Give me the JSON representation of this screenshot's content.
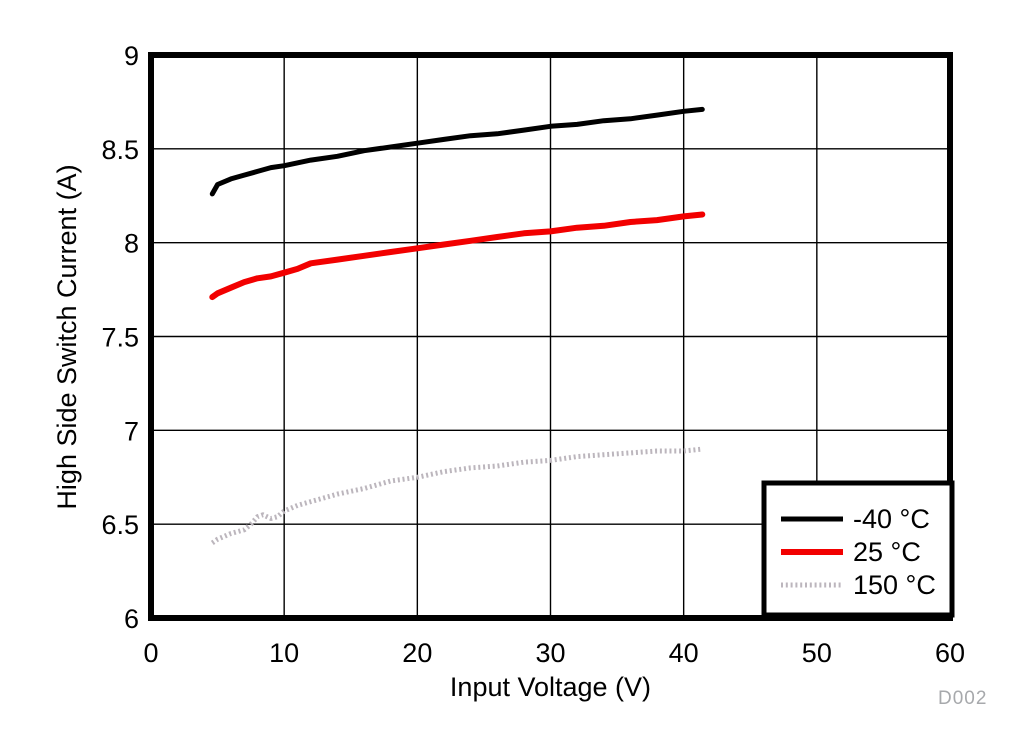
{
  "page": {
    "background": "#ffffff"
  },
  "figure": {
    "id_label": "D002",
    "id_color": "#a7a9ac"
  },
  "chart_data": {
    "type": "line",
    "title": "",
    "xlabel": "Input Voltage (V)",
    "ylabel": "High Side Switch Current (A)",
    "xlim": [
      0,
      60
    ],
    "ylim": [
      6,
      9
    ],
    "xticks": [
      0,
      10,
      20,
      30,
      40,
      50,
      60
    ],
    "yticks": [
      6,
      6.5,
      7,
      7.5,
      8,
      8.5,
      9
    ],
    "grid": true,
    "grid_color": "#000000",
    "axis_border_color": "#000000",
    "legend": {
      "position": "bottom-right",
      "border_color": "#000000",
      "background": "#ffffff"
    },
    "series": [
      {
        "name": "-40 °C",
        "color": "#000000",
        "line_style": "solid",
        "line_width": 5,
        "x": [
          4.6,
          5,
          6,
          7,
          8,
          9,
          10,
          12,
          14,
          16,
          18,
          20,
          22,
          24,
          26,
          28,
          30,
          32,
          34,
          36,
          38,
          40,
          41.4
        ],
        "y": [
          8.26,
          8.31,
          8.34,
          8.36,
          8.38,
          8.4,
          8.41,
          8.44,
          8.46,
          8.49,
          8.51,
          8.53,
          8.55,
          8.57,
          8.58,
          8.6,
          8.62,
          8.63,
          8.65,
          8.66,
          8.68,
          8.7,
          8.71
        ]
      },
      {
        "name": "25 °C",
        "color": "#f20000",
        "line_style": "solid",
        "line_width": 6,
        "x": [
          4.6,
          5,
          6,
          7,
          8,
          9,
          10,
          11,
          12,
          14,
          16,
          18,
          20,
          22,
          24,
          26,
          28,
          30,
          32,
          34,
          36,
          38,
          40,
          41.4
        ],
        "y": [
          7.71,
          7.73,
          7.76,
          7.79,
          7.81,
          7.82,
          7.84,
          7.86,
          7.89,
          7.91,
          7.93,
          7.95,
          7.97,
          7.99,
          8.01,
          8.03,
          8.05,
          8.06,
          8.08,
          8.09,
          8.11,
          8.12,
          8.14,
          8.15
        ]
      },
      {
        "name": "150 °C",
        "color": "#bcb6bd",
        "line_style": "dotted",
        "line_width": 5,
        "x": [
          4.6,
          5,
          6,
          7,
          7.5,
          8,
          8.4,
          9,
          9.5,
          10,
          11,
          12,
          14,
          16,
          18,
          20,
          22,
          24,
          26,
          28,
          30,
          32,
          34,
          36,
          38,
          40,
          41.4
        ],
        "y": [
          6.4,
          6.42,
          6.45,
          6.47,
          6.5,
          6.54,
          6.55,
          6.53,
          6.54,
          6.57,
          6.6,
          6.62,
          6.66,
          6.69,
          6.73,
          6.75,
          6.78,
          6.8,
          6.81,
          6.83,
          6.84,
          6.86,
          6.87,
          6.88,
          6.89,
          6.89,
          6.9
        ]
      }
    ]
  }
}
